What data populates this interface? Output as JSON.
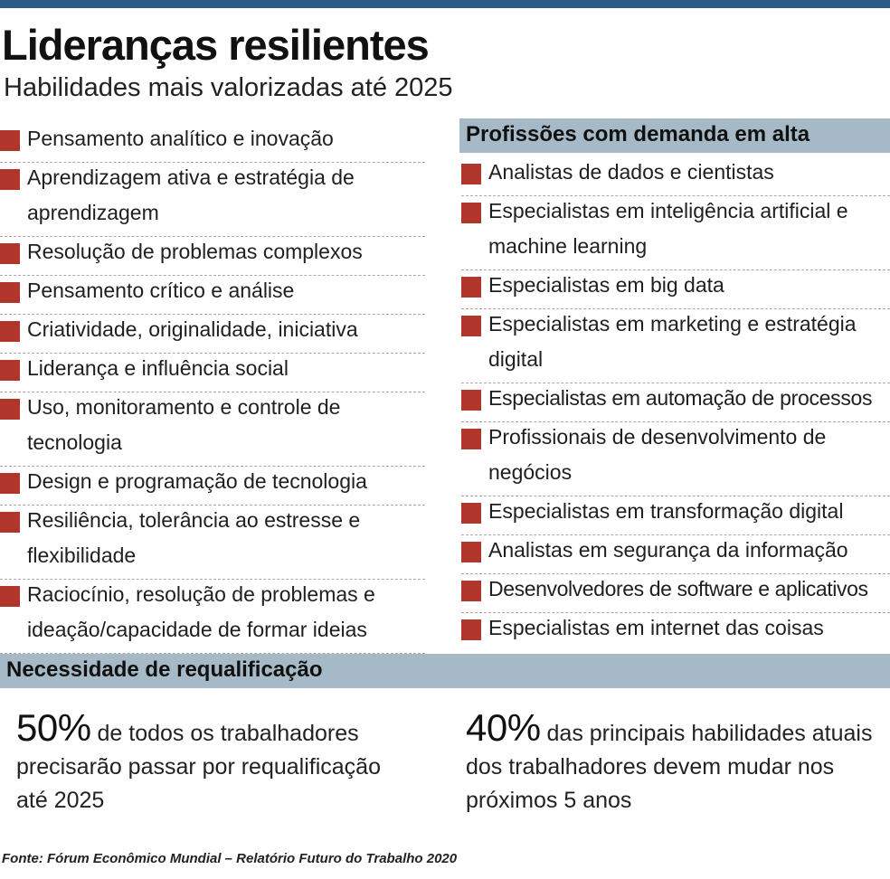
{
  "title": "Lideranças resilientes",
  "subtitle": "Habilidades mais valorizadas até 2025",
  "colors": {
    "top_rule": "#2b5b86",
    "bullet": "#b0352b",
    "band": "#a6b9c6"
  },
  "skills": [
    "Pensamento analítico e inovação",
    "Aprendizagem ativa e estratégia de aprendizagem",
    "Resolução de problemas complexos",
    "Pensamento crítico e análise",
    "Criatividade, originalidade, iniciativa",
    "Liderança e influência social",
    "Uso, monitoramento e controle de tecnologia",
    "Design e programação de tecnologia",
    "Resiliência, tolerância ao estresse e flexibilidade",
    "Raciocínio, resolução de problemas e ideação/capacidade de formar ideias"
  ],
  "jobs_heading": "Profissões com demanda em alta",
  "jobs": [
    "Analistas de dados e cientistas",
    "Especialistas em inteligência artificial e machine learning",
    "Especialistas em big data",
    "Especialistas em marketing e estratégia digital",
    "Especialistas em automação de processos",
    "Profissionais de desenvolvimento de negócios",
    "Especialistas em transformação digital",
    "Analistas em segurança da informação",
    "Desenvolvedores de software e aplicativos",
    "Especialistas em internet das coisas"
  ],
  "reskilling": {
    "heading": "Necessidade de requalificação",
    "stat1": {
      "value": "50%",
      "text": "de todos os trabalhadores precisarão passar por requalificação até 2025"
    },
    "stat2": {
      "value": "40%",
      "text": "das principais habilidades atuais dos trabalhadores devem mudar nos próximos 5 anos"
    }
  },
  "source": "Fonte: Fórum Econômico Mundial – Relatório Futuro do Trabalho 2020"
}
